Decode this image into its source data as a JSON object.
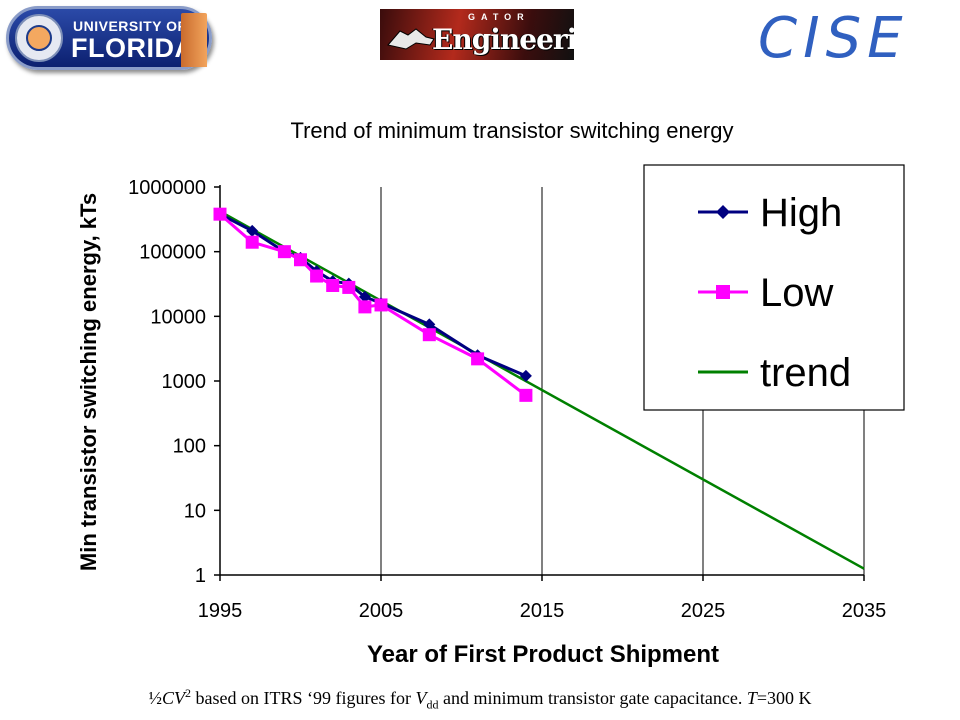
{
  "header": {
    "uf_logo": {
      "line1": "UNIVERSITY OF",
      "line2": "FLORIDA"
    },
    "gator_logo": {
      "small": "GATOR",
      "big": "Engineering"
    },
    "dept_logo": "CISE"
  },
  "chart_data": {
    "type": "line",
    "title": "Trend of minimum transistor switching energy",
    "xlabel": "Year of First Product Shipment",
    "ylabel": "Min transistor switching energy, kTs",
    "xlim": [
      1995,
      2035
    ],
    "ylim": [
      1,
      1000000
    ],
    "yscale": "log",
    "x_ticks": [
      "1995",
      "2005",
      "2015",
      "2025",
      "2035"
    ],
    "y_ticks": [
      "1",
      "10",
      "100",
      "1000",
      "10000",
      "100000",
      "1000000"
    ],
    "grid": "vertical",
    "legend_position": "top-right",
    "series": [
      {
        "name": "High",
        "color": "#000080",
        "marker": "diamond",
        "x": [
          1995,
          1997,
          1999,
          2000,
          2001,
          2002,
          2003,
          2004,
          2005,
          2008,
          2011,
          2014
        ],
        "y": [
          380000,
          210000,
          100000,
          80000,
          50000,
          35000,
          32000,
          20000,
          16000,
          7500,
          2500,
          1200
        ]
      },
      {
        "name": "Low",
        "color": "#ff00ff",
        "marker": "square",
        "x": [
          1995,
          1997,
          1999,
          2000,
          2001,
          2002,
          2003,
          2004,
          2005,
          2008,
          2011,
          2014
        ],
        "y": [
          380000,
          140000,
          100000,
          75000,
          42000,
          30000,
          28000,
          14000,
          15000,
          5200,
          2200,
          600
        ]
      },
      {
        "name": "trend",
        "color": "#008000",
        "marker": "none",
        "x": [
          1995,
          2035
        ],
        "y": [
          420000,
          1.25
        ]
      }
    ]
  },
  "footnote": {
    "half": "½",
    "cv": "CV",
    "sup": "2",
    "mid": " based on ITRS ‘99 figures for ",
    "v": "V",
    "sub": "dd",
    "tail": " and minimum transistor gate capacitance.  ",
    "t": "T",
    "t_val": "=300 K"
  }
}
